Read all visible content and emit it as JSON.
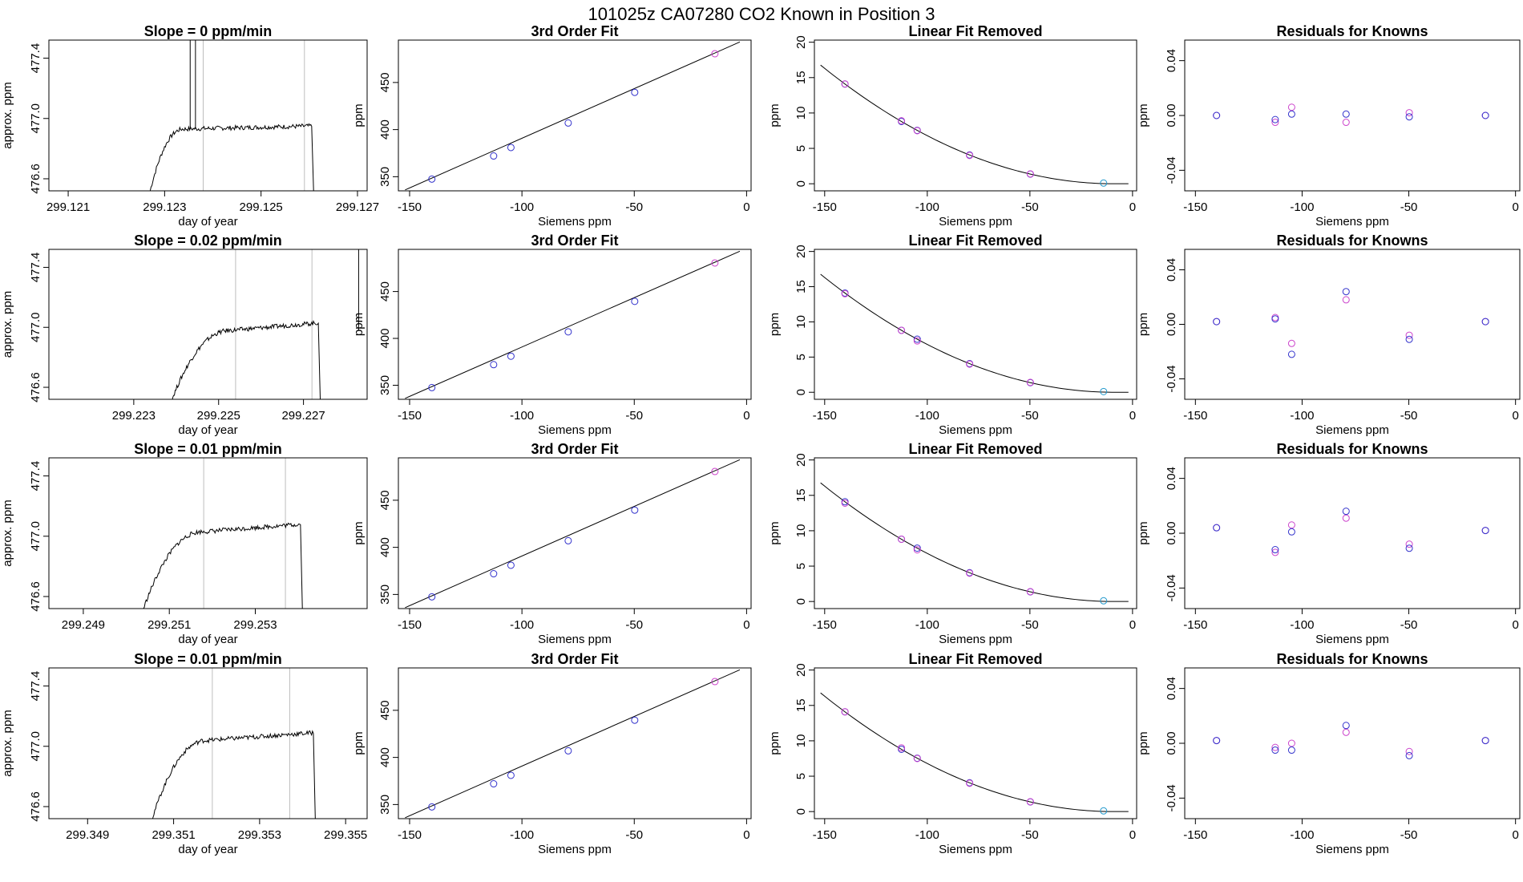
{
  "figure": {
    "title": "101025z      CA07280    CO2 Known in Position  3"
  },
  "colors": {
    "axis": "#000000",
    "trace": "#000000",
    "vline": "#bebebe",
    "blue": "#3333cc",
    "magenta": "#cc44cc",
    "cyan": "#2299cc",
    "fit_line": "#000000"
  },
  "common": {
    "knowns_x": [
      -140.1,
      -112.6,
      -104.9,
      -79.4,
      -49.8,
      -14.1
    ],
    "fit_xlim": [
      -155,
      2
    ],
    "fit_xticks": [
      -150,
      -100,
      -50,
      0
    ],
    "fit_xlabel": "Siemens ppm",
    "fit_ylabel": "ppm",
    "fit_ylim": [
      335,
      495
    ],
    "fit_yticks": [
      350,
      400,
      450
    ],
    "fit_y": [
      347.5,
      372.0,
      381.0,
      407.0,
      439.5,
      480.5
    ],
    "fit_line": [
      [
        -152,
        336
      ],
      [
        -3,
        493
      ]
    ],
    "lin_ylim": [
      -1,
      20.3
    ],
    "lin_yticks": [
      0,
      5,
      10,
      15,
      20
    ],
    "lin_curve_a": 0.00082,
    "lin_curve_x0": -9,
    "lin_x_end": -2,
    "res_ylim": [
      -0.055,
      0.055
    ],
    "res_yticks": [
      -0.04,
      0.0,
      0.04
    ],
    "res_ytick_labels": [
      "-0.04",
      "0.00",
      "0.04"
    ],
    "trace_ylabel": "approx. ppm",
    "trace_xlabel": "day of year",
    "trace_ylim": [
      476.52,
      477.52
    ],
    "trace_yticks": [
      476.6,
      477.0,
      477.4
    ],
    "trace_ytick_labels": [
      "476.6",
      "477.0",
      "477.4"
    ],
    "fit_title": "3rd Order Fit",
    "lin_title": "Linear Fit Removed",
    "res_title": "Residuals for Knowns"
  },
  "chart_data": [
    {
      "row": 1,
      "type": "line",
      "title": "Slope =  0  ppm/min",
      "xlabel": "day of year",
      "ylabel": "approx. ppm",
      "xlim": [
        299.1206,
        299.1272
      ],
      "xticks": [
        299.121,
        299.123,
        299.125,
        299.127
      ],
      "xtick_labels": [
        "299.121",
        "299.123",
        "299.125",
        "299.127"
      ],
      "vlines": [
        299.1238,
        299.1259
      ],
      "spikes": [
        299.12353,
        299.12364
      ],
      "trace": {
        "x0": 299.1227,
        "x_plateau": 299.1234,
        "x_end": 299.12605,
        "y_start": 476.52,
        "y_plateau": 476.93,
        "y_end": 476.95,
        "drop_to": 476.52
      },
      "residuals_blue": [
        0.0,
        -0.003,
        0.001,
        0.001,
        -0.001,
        0.0
      ],
      "residuals_magenta": [
        0.0,
        -0.005,
        0.006,
        -0.005,
        0.002,
        0.0
      ],
      "lin_y_magenta": [
        14.1,
        8.9,
        7.5,
        4.0,
        1.4,
        0.1
      ]
    },
    {
      "row": 2,
      "type": "line",
      "title": "Slope =  0.02  ppm/min",
      "xlabel": "day of year",
      "ylabel": "approx. ppm",
      "xlim": [
        299.221,
        299.2285
      ],
      "xticks": [
        299.223,
        299.225,
        299.227
      ],
      "xtick_labels": [
        "299.223",
        "299.225",
        "299.227"
      ],
      "vlines": [
        299.2254,
        299.2272
      ],
      "spikes": [
        299.2283
      ],
      "trace": {
        "x0": 299.2239,
        "x_plateau": 299.2253,
        "x_end": 299.22735,
        "y_start": 476.52,
        "y_plateau": 476.98,
        "y_end": 477.03,
        "drop_to": 476.52
      },
      "residuals_blue": [
        0.002,
        0.004,
        -0.022,
        0.024,
        -0.011,
        0.002
      ],
      "residuals_magenta": [
        0.002,
        0.005,
        -0.014,
        0.018,
        -0.008,
        0.002
      ],
      "lin_y_magenta": [
        14.0,
        8.8,
        7.3,
        4.0,
        1.4,
        0.1
      ]
    },
    {
      "row": 3,
      "type": "line",
      "title": "Slope =  0.01  ppm/min",
      "xlabel": "day of year",
      "ylabel": "approx. ppm",
      "xlim": [
        299.2482,
        299.2556
      ],
      "xticks": [
        299.249,
        299.251,
        299.253
      ],
      "xtick_labels": [
        "299.249",
        "299.251",
        "299.253"
      ],
      "vlines": [
        299.2518,
        299.2537
      ],
      "spikes": [],
      "trace": {
        "x0": 299.2504,
        "x_plateau": 299.2518,
        "x_end": 299.25405,
        "y_start": 476.52,
        "y_plateau": 477.03,
        "y_end": 477.08,
        "drop_to": 476.52
      },
      "residuals_blue": [
        0.004,
        -0.012,
        0.001,
        0.016,
        -0.011,
        0.002
      ],
      "residuals_magenta": [
        0.004,
        -0.014,
        0.006,
        0.011,
        -0.008,
        0.002
      ],
      "lin_y_magenta": [
        13.9,
        8.8,
        7.3,
        4.0,
        1.4,
        0.1
      ]
    },
    {
      "row": 4,
      "type": "line",
      "title": "Slope =  0.01  ppm/min",
      "xlabel": "day of year",
      "ylabel": "approx. ppm",
      "xlim": [
        299.3481,
        299.3555
      ],
      "xticks": [
        299.349,
        299.351,
        299.353,
        299.355
      ],
      "xtick_labels": [
        "299.349",
        "299.351",
        "299.353",
        "299.355"
      ],
      "vlines": [
        299.3519,
        299.3537
      ],
      "spikes": [],
      "trace": {
        "x0": 299.3505,
        "x_plateau": 299.3518,
        "x_end": 299.35425,
        "y_start": 476.52,
        "y_plateau": 477.04,
        "y_end": 477.09,
        "drop_to": 476.52
      },
      "residuals_blue": [
        0.002,
        -0.005,
        -0.005,
        0.013,
        -0.009,
        0.002
      ],
      "residuals_magenta": [
        0.002,
        -0.003,
        0.0,
        0.008,
        -0.006,
        0.002
      ],
      "lin_y_magenta": [
        14.1,
        9.0,
        7.5,
        4.0,
        1.4,
        0.1
      ]
    }
  ]
}
